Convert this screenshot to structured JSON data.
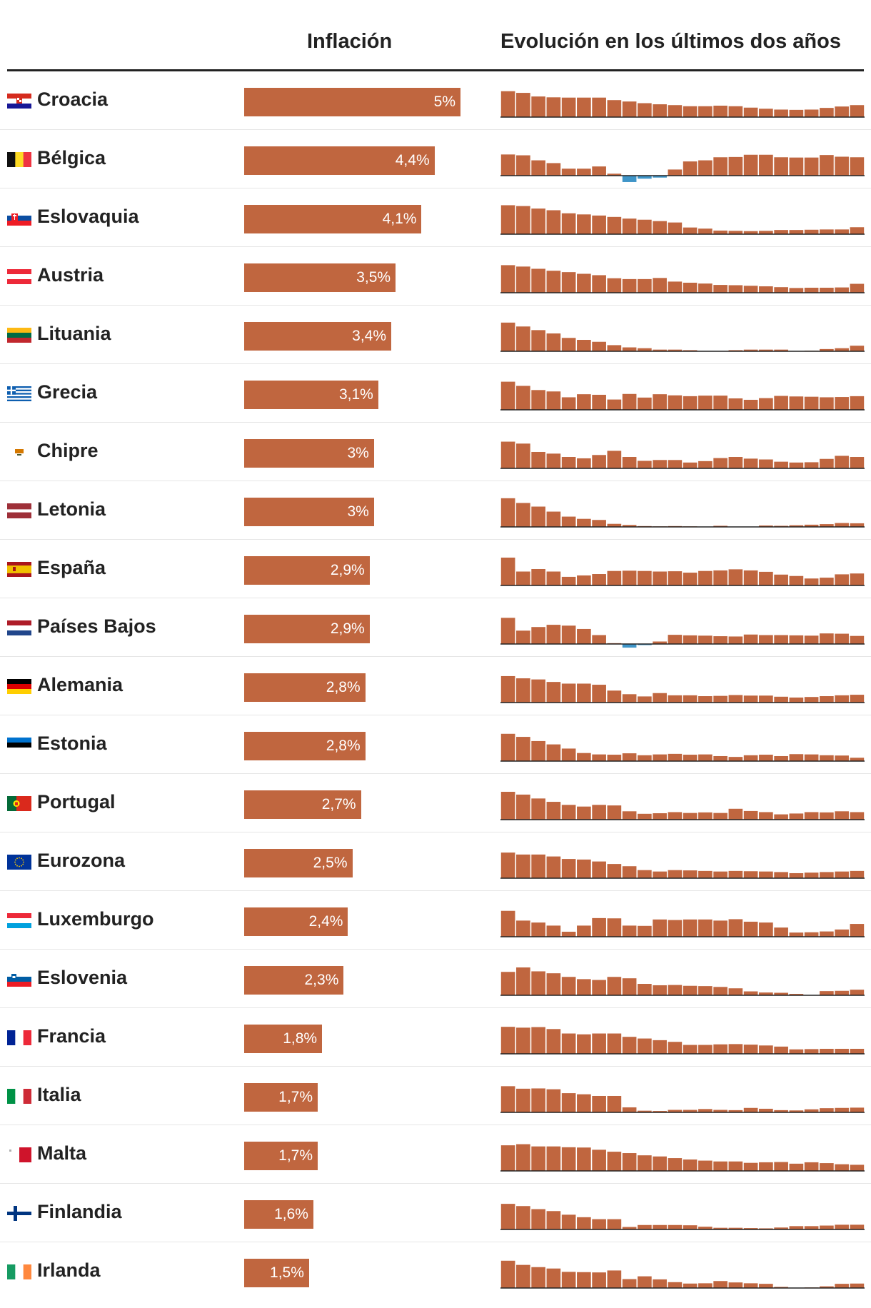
{
  "header": {
    "inflation": "Inflación",
    "evolution": "Evolución en los últimos dos años"
  },
  "colors": {
    "bar": "#c0663f",
    "negative": "#3f95c8",
    "text": "#222222",
    "bar_label": "#ffffff"
  },
  "chart_data": {
    "type": "bar",
    "title": "Inflación",
    "value_unit": "%",
    "xlim": [
      0,
      5.0
    ],
    "sparkline_title": "Evolución en los últimos dos años",
    "sparkline_ylim": [
      -1,
      11
    ],
    "rows": [
      {
        "country": "Croacia",
        "flag": "croatia-flag",
        "value": 5.0,
        "label": "5%",
        "history": [
          9.3,
          8.7,
          7.4,
          7.1,
          7.0,
          7.0,
          7.0,
          6.1,
          5.6,
          5.0,
          4.6,
          4.3,
          3.9,
          3.9,
          4.1,
          3.9,
          3.4,
          3.0,
          2.7,
          2.6,
          2.7,
          3.3,
          3.8,
          4.3
        ]
      },
      {
        "country": "Bélgica",
        "flag": "belgium-flag",
        "value": 4.4,
        "label": "4,4%",
        "history": [
          7.6,
          7.3,
          5.5,
          4.5,
          2.5,
          2.5,
          3.3,
          0.7,
          -2.3,
          -1.1,
          -0.7,
          2.2,
          5.1,
          5.5,
          6.6,
          6.7,
          7.5,
          7.5,
          6.6,
          6.5,
          6.5,
          7.4,
          6.8,
          6.6
        ]
      },
      {
        "country": "Eslovaquia",
        "flag": "slovakia-flag",
        "value": 4.1,
        "label": "4,1%",
        "history": [
          10.4,
          10.1,
          9.2,
          8.6,
          7.5,
          7.1,
          6.7,
          6.2,
          5.6,
          5.2,
          4.7,
          4.2,
          2.4,
          2.0,
          1.3,
          1.2,
          1.1,
          1.2,
          1.5,
          1.5,
          1.6,
          1.7,
          1.7,
          2.5
        ]
      },
      {
        "country": "Austria",
        "flag": "austria-flag",
        "value": 3.5,
        "label": "3,5%",
        "history": [
          9.9,
          9.4,
          8.6,
          7.9,
          7.4,
          6.8,
          6.3,
          5.2,
          4.9,
          4.9,
          5.3,
          4.0,
          3.6,
          3.3,
          2.8,
          2.7,
          2.5,
          2.3,
          2.0,
          1.7,
          1.8,
          1.8,
          1.9,
          3.2
        ]
      },
      {
        "country": "Lituania",
        "flag": "lithuania-flag",
        "value": 3.4,
        "label": "3,4%",
        "history": [
          10.3,
          8.9,
          7.6,
          6.4,
          4.8,
          4.1,
          3.4,
          2.2,
          1.4,
          1.1,
          0.6,
          0.6,
          0.4,
          0.1,
          0.1,
          0.4,
          0.6,
          0.6,
          0.6,
          0.1,
          0.2,
          0.8,
          1.1,
          2.0
        ]
      },
      {
        "country": "Grecia",
        "flag": "greece-flag",
        "value": 3.1,
        "label": "3,1%",
        "history": [
          10.1,
          8.6,
          7.1,
          6.6,
          4.5,
          5.6,
          5.4,
          3.7,
          5.7,
          4.4,
          5.6,
          5.2,
          4.9,
          5.1,
          5.1,
          4.1,
          3.6,
          4.2,
          5.0,
          4.8,
          4.7,
          4.5,
          4.6,
          4.9
        ]
      },
      {
        "country": "Chipre",
        "flag": "cyprus-flag",
        "value": 3.0,
        "label": "3%",
        "history": [
          9.6,
          8.9,
          5.9,
          5.3,
          4.1,
          3.6,
          4.8,
          6.3,
          4.1,
          2.7,
          3.0,
          3.0,
          2.1,
          2.6,
          3.7,
          4.1,
          3.5,
          3.2,
          2.4,
          2.1,
          2.2,
          3.4,
          4.5,
          4.1
        ]
      },
      {
        "country": "Letonia",
        "flag": "latvia-flag",
        "value": 3.0,
        "label": "3%",
        "history": [
          10.3,
          8.6,
          7.3,
          5.5,
          3.7,
          2.9,
          2.5,
          1.1,
          0.7,
          0.3,
          0.2,
          0.3,
          0.2,
          0.1,
          0.4,
          0.1,
          0.1,
          0.5,
          0.4,
          0.6,
          0.8,
          1.0,
          1.4,
          1.3
        ]
      },
      {
        "country": "España",
        "flag": "spain-flag",
        "value": 2.9,
        "label": "2,9%",
        "history": [
          10.0,
          5.0,
          5.9,
          5.0,
          3.1,
          3.6,
          4.1,
          5.2,
          5.3,
          5.2,
          5.0,
          5.1,
          4.6,
          5.2,
          5.4,
          5.8,
          5.4,
          4.9,
          3.9,
          3.4,
          2.5,
          2.8,
          4.0,
          4.3
        ]
      },
      {
        "country": "Países Bajos",
        "flag": "netherlands-flag",
        "value": 2.9,
        "label": "2,9%",
        "history": [
          9.4,
          4.8,
          6.1,
          6.9,
          6.6,
          5.4,
          3.2,
          0.3,
          -1.3,
          -0.4,
          0.9,
          3.3,
          3.1,
          3.0,
          2.8,
          2.7,
          3.4,
          3.2,
          3.2,
          3.1,
          3.0,
          3.8,
          3.7,
          2.9
        ]
      },
      {
        "country": "Alemania",
        "flag": "germany-flag",
        "value": 2.8,
        "label": "2,8%",
        "history": [
          9.5,
          8.7,
          8.3,
          7.4,
          6.8,
          6.8,
          6.4,
          4.3,
          3.0,
          2.2,
          3.4,
          2.6,
          2.6,
          2.3,
          2.4,
          2.7,
          2.5,
          2.5,
          2.1,
          1.8,
          2.0,
          2.3,
          2.6,
          2.8
        ]
      },
      {
        "country": "Estonia",
        "flag": "estonia-flag",
        "value": 2.8,
        "label": "2,8%",
        "history": [
          9.8,
          8.7,
          7.2,
          6.0,
          4.5,
          2.9,
          2.4,
          2.3,
          2.8,
          2.1,
          2.4,
          2.6,
          2.3,
          2.4,
          1.8,
          1.5,
          2.1,
          2.3,
          1.8,
          2.5,
          2.4,
          2.1,
          2.0,
          1.2
        ]
      },
      {
        "country": "Portugal",
        "flag": "portugal-flag",
        "value": 2.7,
        "label": "2,7%",
        "history": [
          10.0,
          9.0,
          7.6,
          6.4,
          5.3,
          4.7,
          5.3,
          5.1,
          3.0,
          2.1,
          2.3,
          2.7,
          2.4,
          2.6,
          2.4,
          3.9,
          3.1,
          2.7,
          1.9,
          2.2,
          2.7,
          2.6,
          3.0,
          2.7
        ]
      },
      {
        "country": "Eurozona",
        "flag": "eu-flag",
        "value": 2.5,
        "label": "2,5%",
        "history": [
          9.2,
          8.5,
          8.5,
          7.8,
          6.9,
          6.7,
          6.0,
          5.1,
          4.3,
          2.9,
          2.4,
          2.9,
          2.8,
          2.6,
          2.4,
          2.6,
          2.5,
          2.4,
          2.2,
          1.8,
          2.0,
          2.2,
          2.4,
          2.6
        ]
      },
      {
        "country": "Luxemburgo",
        "flag": "luxembourg-flag",
        "value": 2.4,
        "label": "2,4%",
        "history": [
          9.3,
          5.8,
          5.1,
          4.0,
          1.8,
          4.0,
          6.7,
          6.6,
          4.0,
          3.9,
          6.2,
          6.0,
          6.2,
          6.2,
          5.8,
          6.3,
          5.4,
          5.1,
          3.3,
          1.5,
          1.6,
          1.9,
          2.6,
          4.6
        ]
      },
      {
        "country": "Eslovenia",
        "flag": "slovenia-flag",
        "value": 2.3,
        "label": "2,3%",
        "history": [
          8.4,
          10.0,
          8.6,
          7.9,
          6.6,
          5.8,
          5.5,
          6.6,
          6.1,
          4.1,
          3.6,
          3.7,
          3.4,
          3.3,
          3.0,
          2.5,
          1.4,
          1.0,
          0.9,
          0.5,
          0.0,
          1.5,
          1.6,
          2.0
        ]
      },
      {
        "country": "Francia",
        "flag": "france-flag",
        "value": 1.8,
        "label": "1,8%",
        "history": [
          9.7,
          9.4,
          9.6,
          8.9,
          7.3,
          7.0,
          7.3,
          7.3,
          6.1,
          5.5,
          4.9,
          4.3,
          3.2,
          3.2,
          3.4,
          3.5,
          3.3,
          3.0,
          2.6,
          1.6,
          1.7,
          1.8,
          1.8,
          1.8
        ]
      },
      {
        "country": "Italia",
        "flag": "italy-flag",
        "value": 1.7,
        "label": "1,7%",
        "history": [
          9.4,
          8.5,
          8.6,
          8.3,
          6.9,
          6.5,
          5.9,
          5.9,
          1.8,
          0.6,
          0.5,
          0.9,
          0.9,
          1.2,
          0.9,
          0.8,
          1.6,
          1.3,
          0.8,
          0.7,
          1.1,
          1.5,
          1.6,
          1.7
        ]
      },
      {
        "country": "Malta",
        "flag": "malta-flag",
        "value": 1.7,
        "label": "1,7%",
        "history": [
          9.2,
          9.6,
          8.8,
          8.8,
          8.5,
          8.4,
          7.6,
          6.9,
          6.4,
          5.6,
          5.2,
          4.6,
          4.1,
          3.7,
          3.4,
          3.4,
          2.9,
          3.1,
          3.2,
          2.6,
          3.1,
          2.8,
          2.4,
          2.2
        ]
      },
      {
        "country": "Finlandia",
        "flag": "finland-flag",
        "value": 1.6,
        "label": "1,6%",
        "history": [
          9.2,
          8.4,
          7.3,
          6.6,
          5.3,
          4.4,
          3.7,
          3.7,
          0.9,
          1.6,
          1.6,
          1.6,
          1.5,
          1.0,
          0.6,
          0.6,
          0.5,
          0.4,
          0.7,
          1.2,
          1.2,
          1.4,
          1.7,
          1.7
        ]
      },
      {
        "country": "Irlanda",
        "flag": "ireland-flag",
        "value": 1.5,
        "label": "1,5%",
        "history": [
          9.8,
          8.3,
          7.5,
          7.0,
          5.8,
          5.7,
          5.6,
          6.3,
          3.2,
          4.2,
          3.1,
          2.1,
          1.6,
          1.7,
          2.5,
          2.0,
          1.7,
          1.5,
          0.4,
          0.1,
          0.2,
          0.6,
          1.5,
          1.6
        ]
      }
    ]
  }
}
